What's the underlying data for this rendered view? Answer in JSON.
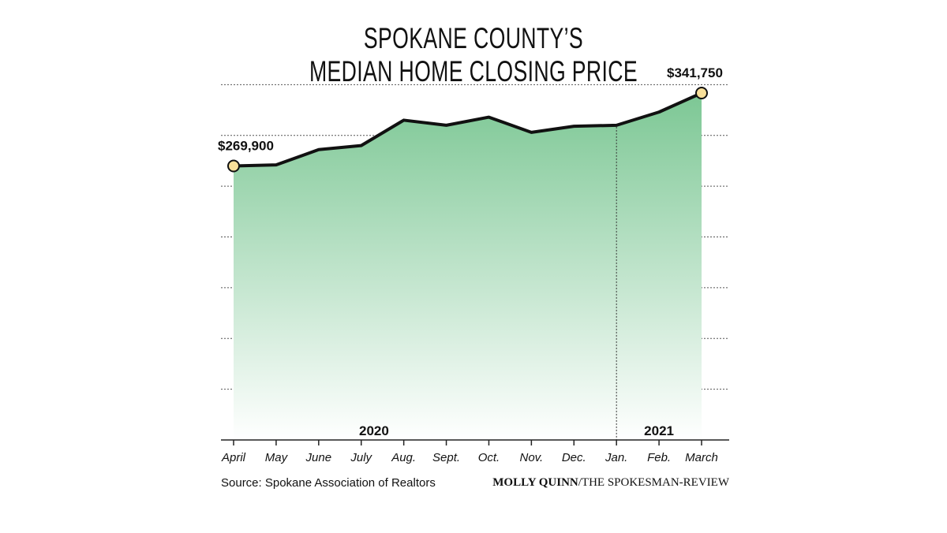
{
  "chart_data": {
    "type": "area",
    "title_lines": [
      "SPOKANE COUNTY’S",
      "MEDIAN HOME CLOSING PRICE"
    ],
    "categories": [
      "April",
      "May",
      "June",
      "July",
      "Aug.",
      "Sept.",
      "Oct.",
      "Nov.",
      "Dec.",
      "Jan.",
      "Feb.",
      "March"
    ],
    "values": [
      269900,
      271000,
      286000,
      290000,
      315000,
      310000,
      318000,
      303000,
      309000,
      310000,
      323000,
      341750
    ],
    "year_labels": [
      {
        "text": "2020",
        "at_category": 3.3
      },
      {
        "text": "2021",
        "at_category": 10
      }
    ],
    "year_divider_at_category": 9,
    "endpoint_labels": [
      {
        "index": 0,
        "text": "$269,900"
      },
      {
        "index": 11,
        "text": "$341,750"
      }
    ],
    "ylim": [
      0,
      400000
    ],
    "gridlines": [
      50000,
      100000,
      150000,
      200000,
      250000,
      300000,
      350000
    ],
    "grid": true,
    "line_color": "#111111",
    "fill_top_color": "#7cc794",
    "fill_bottom_color": "#ffffff",
    "marker_color": "#f9e09a"
  },
  "footer": {
    "source": "Source: Spokane Association of Realtors",
    "credit_author": "MOLLY QUINN",
    "credit_org": "/THE SPOKESMAN-REVIEW"
  }
}
